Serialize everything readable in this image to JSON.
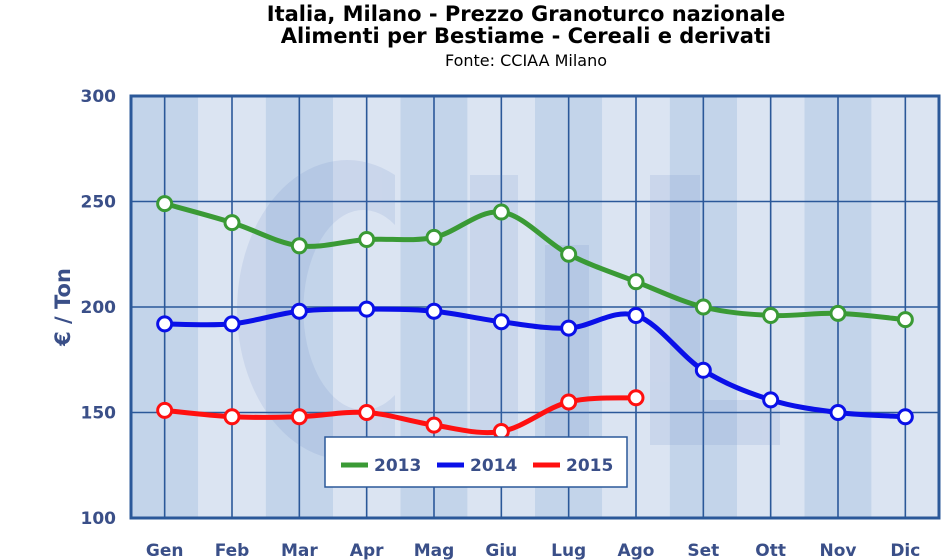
{
  "title": "Italia, Milano - Prezzo Granoturco nazionale",
  "subtitle": "Alimenti per Bestiame - Cereali e derivati",
  "source": "Fonte: CCIAA Milano",
  "chart_data": {
    "type": "line",
    "title": "Italia, Milano - Prezzo Granoturco nazionale",
    "subtitle": "Alimenti per Bestiame - Cereali e derivati",
    "xlabel": "",
    "ylabel": "€ / Ton",
    "categories": [
      "Gen",
      "Feb",
      "Mar",
      "Apr",
      "Mag",
      "Giu",
      "Lug",
      "Ago",
      "Set",
      "Ott",
      "Nov",
      "Dic"
    ],
    "ylim": [
      100,
      300
    ],
    "yticks": [
      100,
      150,
      200,
      250,
      300
    ],
    "grid": true,
    "legend_position": "bottom-center",
    "series": [
      {
        "name": "2013",
        "color": "#3a9a35",
        "values": [
          249,
          240,
          229,
          232,
          233,
          245,
          225,
          212,
          200,
          196,
          197,
          194
        ]
      },
      {
        "name": "2014",
        "color": "#0a10e8",
        "values": [
          192,
          192,
          198,
          199,
          198,
          193,
          190,
          196,
          170,
          156,
          150,
          148
        ]
      },
      {
        "name": "2015",
        "color": "#ff1010",
        "values": [
          151,
          148,
          148,
          150,
          144,
          141,
          155,
          157,
          null,
          null,
          null,
          null
        ]
      }
    ]
  }
}
